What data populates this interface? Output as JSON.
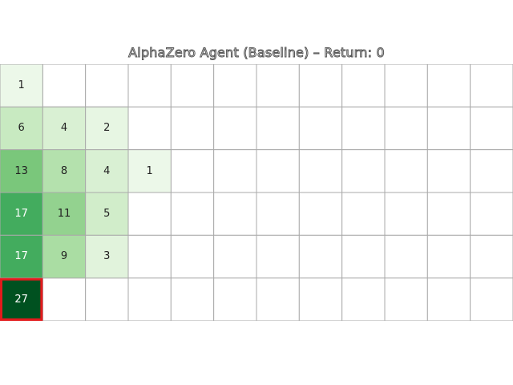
{
  "title": "AlphaZero Agent (Baseline) – Return: 0",
  "grid": {
    "cols": 12,
    "rows": 6,
    "cells": [
      {
        "row": 0,
        "col": 0,
        "value": 1
      },
      {
        "row": 1,
        "col": 0,
        "value": 6
      },
      {
        "row": 1,
        "col": 1,
        "value": 4
      },
      {
        "row": 1,
        "col": 2,
        "value": 2
      },
      {
        "row": 2,
        "col": 0,
        "value": 13
      },
      {
        "row": 2,
        "col": 1,
        "value": 8
      },
      {
        "row": 2,
        "col": 2,
        "value": 4
      },
      {
        "row": 2,
        "col": 3,
        "value": 1
      },
      {
        "row": 3,
        "col": 0,
        "value": 17
      },
      {
        "row": 3,
        "col": 1,
        "value": 11
      },
      {
        "row": 3,
        "col": 2,
        "value": 5
      },
      {
        "row": 4,
        "col": 0,
        "value": 17
      },
      {
        "row": 4,
        "col": 1,
        "value": 9
      },
      {
        "row": 4,
        "col": 2,
        "value": 3
      },
      {
        "row": 5,
        "col": 0,
        "value": 27,
        "highlighted": true
      }
    ],
    "max_value": 27,
    "colormap": "Greens",
    "highlight_color": "#e31a1c",
    "grid_line_color": "#aaaaaa"
  }
}
